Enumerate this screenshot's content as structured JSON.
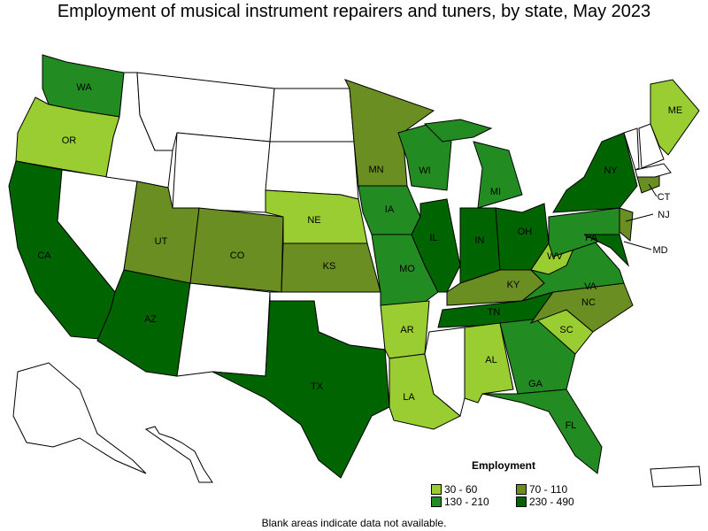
{
  "title": "Employment of musical instrument repairers and tuners, by state, May 2023",
  "legend": {
    "title": "Employment",
    "items": [
      {
        "label": "30 - 60",
        "color": "#9ACD32"
      },
      {
        "label": "70 - 110",
        "color": "#6B8E23"
      },
      {
        "label": "130 - 210",
        "color": "#228B22"
      },
      {
        "label": "230 - 490",
        "color": "#006400"
      }
    ]
  },
  "note": "Blank areas indicate data not available.",
  "states": {
    "OR": 0,
    "NE": 0,
    "ME": 0,
    "WV": 0,
    "AR": 0,
    "LA": 0,
    "AL": 0,
    "SC": 0,
    "MN": 1,
    "UT": 1,
    "CO": 1,
    "KS": 1,
    "KY": 1,
    "NC": 1,
    "CT": 1,
    "NJ": 1,
    "WA": 2,
    "WI": 2,
    "MI": 2,
    "IA": 2,
    "MO": 2,
    "PA": 2,
    "VA": 2,
    "GA": 2,
    "FL": 2,
    "CA": 3,
    "AZ": 3,
    "TX": 3,
    "IL": 3,
    "IN": 3,
    "OH": 3,
    "NY": 3,
    "TN": 3,
    "MD": 3
  },
  "labels": [
    "WA",
    "OR",
    "CA",
    "AZ",
    "UT",
    "CO",
    "NE",
    "KS",
    "TX",
    "MN",
    "IA",
    "MO",
    "AR",
    "LA",
    "WI",
    "IL",
    "MI",
    "IN",
    "OH",
    "KY",
    "TN",
    "AL",
    "GA",
    "FL",
    "SC",
    "NC",
    "VA",
    "WV",
    "PA",
    "NY",
    "ME",
    "CT",
    "NJ",
    "MD"
  ]
}
